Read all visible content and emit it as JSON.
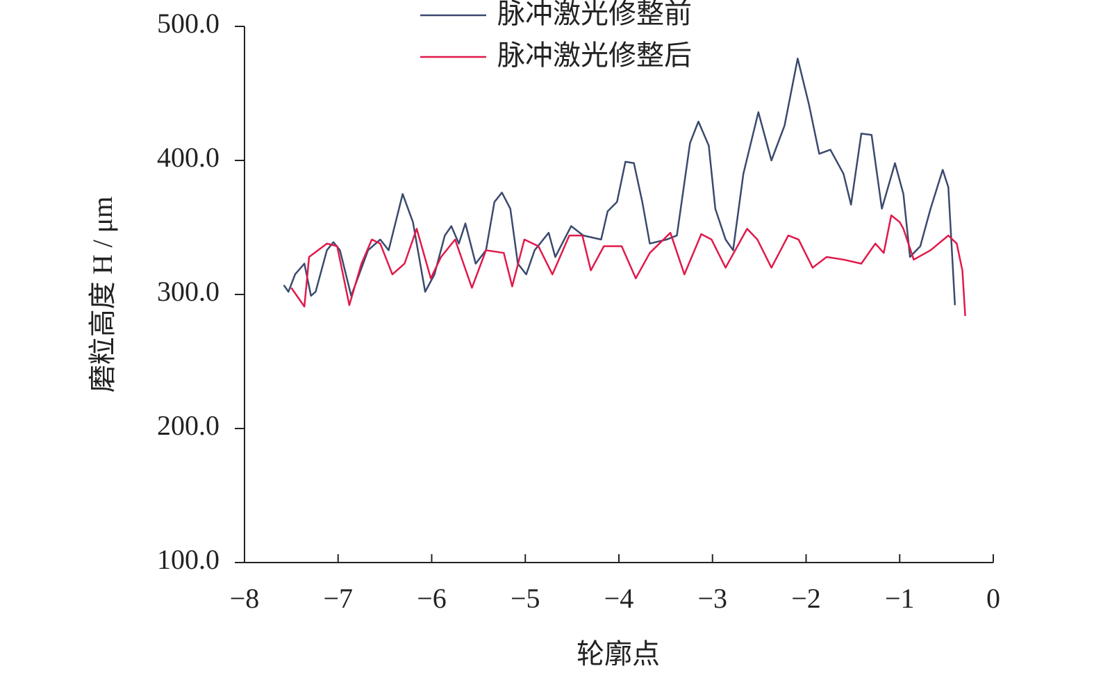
{
  "chart_data": {
    "type": "line",
    "x_label": "轮廓点",
    "y_label": "磨粒高度 H / μm",
    "xlim": [
      -8,
      0
    ],
    "ylim": [
      100,
      500
    ],
    "xticks": [
      {
        "value": -8,
        "label": "−8"
      },
      {
        "value": -7,
        "label": "−7"
      },
      {
        "value": -6,
        "label": "−6"
      },
      {
        "value": -5,
        "label": "−5"
      },
      {
        "value": -4,
        "label": "−4"
      },
      {
        "value": -3,
        "label": "−3"
      },
      {
        "value": -2,
        "label": "−2"
      },
      {
        "value": -1,
        "label": "−1"
      },
      0
    ],
    "yticks": [
      {
        "value": 100,
        "label": "100.0"
      },
      {
        "value": 200,
        "label": "200.0"
      },
      {
        "value": 300,
        "label": "300.0"
      },
      {
        "value": 400,
        "label": "400.0"
      },
      {
        "value": 500,
        "label": "500.0"
      }
    ],
    "grid": false,
    "series": [
      {
        "name": "脉冲激光修整前",
        "color": "#3a4a6e",
        "x": [
          -7.58,
          -7.53,
          -7.46,
          -7.36,
          -7.29,
          -7.24,
          -7.12,
          -7.05,
          -6.98,
          -6.86,
          -6.79,
          -6.68,
          -6.55,
          -6.46,
          -6.31,
          -6.2,
          -6.07,
          -5.97,
          -5.86,
          -5.79,
          -5.71,
          -5.64,
          -5.53,
          -5.42,
          -5.33,
          -5.25,
          -5.16,
          -5.08,
          -4.99,
          -4.9,
          -4.75,
          -4.68,
          -4.51,
          -4.38,
          -4.19,
          -4.12,
          -4.02,
          -3.93,
          -3.84,
          -3.75,
          -3.67,
          -3.49,
          -3.38,
          -3.24,
          -3.15,
          -3.04,
          -2.97,
          -2.86,
          -2.78,
          -2.67,
          -2.51,
          -2.37,
          -2.23,
          -2.09,
          -1.97,
          -1.86,
          -1.74,
          -1.6,
          -1.52,
          -1.41,
          -1.3,
          -1.19,
          -1.05,
          -0.96,
          -0.89,
          -0.78,
          -0.67,
          -0.54,
          -0.48,
          -0.41
        ],
        "values": [
          307,
          302,
          315,
          323,
          299,
          302,
          333,
          339,
          333,
          299,
          312,
          333,
          341,
          333,
          375,
          354,
          302,
          315,
          344,
          351,
          338,
          353,
          323,
          333,
          369,
          376,
          364,
          323,
          315,
          333,
          346,
          328,
          351,
          344,
          341,
          362,
          369,
          399,
          398,
          369,
          338,
          341,
          344,
          413,
          429,
          411,
          364,
          341,
          333,
          390,
          436,
          400,
          426,
          476,
          442,
          405,
          408,
          390,
          367,
          420,
          419,
          364,
          398,
          375,
          328,
          336,
          364,
          393,
          380,
          292
        ]
      },
      {
        "name": "脉冲激光修整后",
        "color": "#e0194a",
        "x": [
          -7.5,
          -7.36,
          -7.31,
          -7.12,
          -7.01,
          -6.88,
          -6.75,
          -6.64,
          -6.55,
          -6.42,
          -6.29,
          -6.16,
          -6.01,
          -5.9,
          -5.75,
          -5.57,
          -5.42,
          -5.23,
          -5.14,
          -5.01,
          -4.86,
          -4.71,
          -4.53,
          -4.39,
          -4.3,
          -4.16,
          -3.97,
          -3.82,
          -3.67,
          -3.45,
          -3.3,
          -3.12,
          -3.01,
          -2.86,
          -2.63,
          -2.52,
          -2.37,
          -2.19,
          -2.08,
          -1.93,
          -1.78,
          -1.6,
          -1.41,
          -1.26,
          -1.17,
          -1.09,
          -1.0,
          -0.96,
          -0.85,
          -0.67,
          -0.48,
          -0.39,
          -0.33,
          -0.3
        ],
        "values": [
          305,
          291,
          328,
          338,
          336,
          292,
          323,
          341,
          338,
          315,
          323,
          349,
          312,
          328,
          341,
          305,
          333,
          331,
          306,
          341,
          336,
          315,
          344,
          344,
          318,
          336,
          336,
          312,
          331,
          346,
          315,
          345,
          341,
          320,
          349,
          341,
          320,
          344,
          341,
          320,
          328,
          326,
          323,
          338,
          331,
          359,
          354,
          349,
          326,
          333,
          344,
          338,
          318,
          284
        ]
      }
    ]
  }
}
